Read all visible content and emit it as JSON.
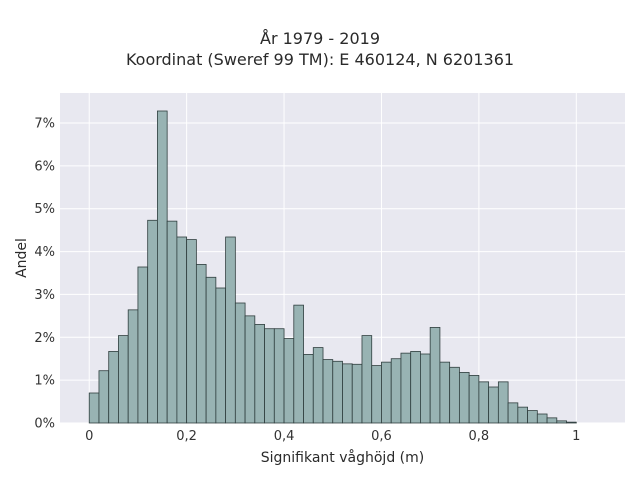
{
  "chart_data": {
    "type": "bar",
    "title": "År 1979 - 2019",
    "subtitle": "Koordinat (Sweref 99 TM): E 460124, N 6201361",
    "xlabel": "Signifikant våghöjd (m)",
    "ylabel": "Andel",
    "xlim": [
      -0.06,
      1.1
    ],
    "ylim": [
      0,
      7.7
    ],
    "x_ticks": [
      0,
      0.2,
      0.4,
      0.6,
      0.8,
      1
    ],
    "x_tick_labels": [
      "0",
      "0,2",
      "0,4",
      "0,6",
      "0,8",
      "1"
    ],
    "y_ticks": [
      0,
      1,
      2,
      3,
      4,
      5,
      6,
      7
    ],
    "y_tick_labels": [
      "0%",
      "1%",
      "2%",
      "3%",
      "4%",
      "5%",
      "6%",
      "7%"
    ],
    "bin_start": 0,
    "bin_width": 0.02,
    "values": [
      0.7,
      1.22,
      1.67,
      2.04,
      2.64,
      3.64,
      4.73,
      7.28,
      4.71,
      4.34,
      4.28,
      3.7,
      3.4,
      3.15,
      4.34,
      2.8,
      2.5,
      2.3,
      2.2,
      2.2,
      1.97,
      2.75,
      1.6,
      1.76,
      1.48,
      1.44,
      1.38,
      1.37,
      2.04,
      1.34,
      1.42,
      1.5,
      1.63,
      1.67,
      1.61,
      2.23,
      1.42,
      1.3,
      1.18,
      1.11,
      0.96,
      0.84,
      0.96,
      0.47,
      0.37,
      0.29,
      0.21,
      0.12,
      0.05,
      0.02
    ],
    "bar_color": "#98b3b3",
    "bar_edge_color": "#2f3e3e",
    "background_color": "#e8e8f0",
    "grid_color": "#ffffff",
    "grid": true
  }
}
